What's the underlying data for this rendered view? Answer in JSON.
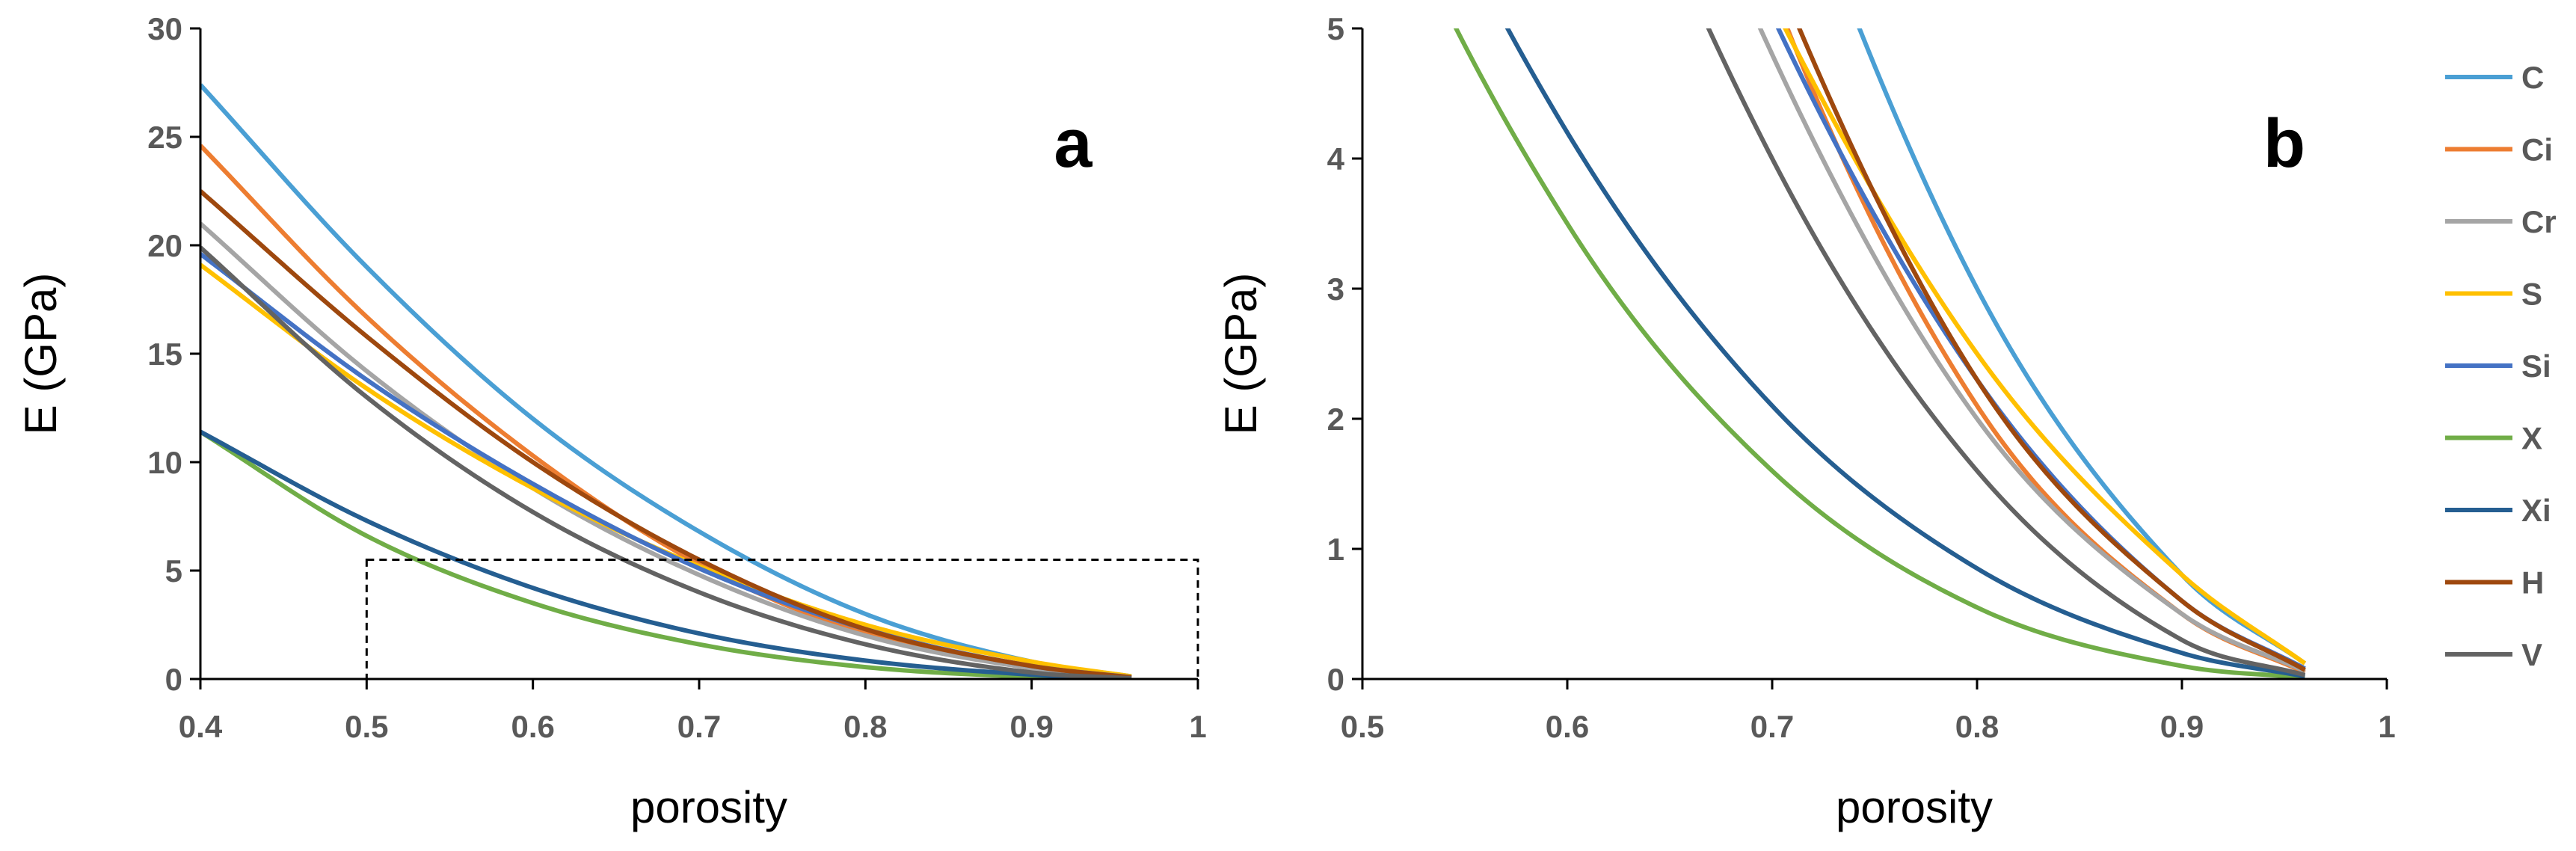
{
  "chart_data": [
    {
      "type": "line",
      "panel": "a",
      "xlabel": "porosity",
      "ylabel": "E (GPa)",
      "xlim": [
        0.4,
        1
      ],
      "ylim": [
        0,
        30
      ],
      "xticks": [
        0.4,
        0.5,
        0.6,
        0.7,
        0.8,
        0.9,
        1
      ],
      "yticks": [
        0,
        5,
        10,
        15,
        20,
        25,
        30
      ],
      "xtick_labels": [
        "0.4",
        "0.5",
        "0.6",
        "0.7",
        "0.8",
        "0.9",
        "1"
      ],
      "ytick_labels": [
        "0",
        "5",
        "10",
        "15",
        "20",
        "25",
        "30"
      ],
      "grid": false,
      "zoom_box": {
        "x": [
          0.5,
          1
        ],
        "y": [
          0,
          5.5
        ],
        "style": "dashed"
      }
    },
    {
      "type": "line",
      "panel": "b",
      "xlabel": "porosity",
      "ylabel": "E (GPa)",
      "xlim": [
        0.5,
        1
      ],
      "ylim": [
        0,
        5
      ],
      "xticks": [
        0.5,
        0.6,
        0.7,
        0.8,
        0.9,
        1
      ],
      "yticks": [
        0,
        1,
        2,
        3,
        4,
        5
      ],
      "xtick_labels": [
        "0.5",
        "0.6",
        "0.7",
        "0.8",
        "0.9",
        "1"
      ],
      "ytick_labels": [
        "0",
        "1",
        "2",
        "3",
        "4",
        "5"
      ],
      "grid": false
    }
  ],
  "series": [
    {
      "name": "C",
      "color": "#4a9fd4",
      "x": [
        0.4,
        0.5,
        0.6,
        0.7,
        0.8,
        0.9,
        0.96
      ],
      "y": [
        27.4,
        19.0,
        12.0,
        6.8,
        3.0,
        0.8,
        0.12
      ]
    },
    {
      "name": "Ci",
      "color": "#ed7d31",
      "x": [
        0.4,
        0.5,
        0.6,
        0.7,
        0.8,
        0.9,
        0.96
      ],
      "y": [
        24.6,
        16.7,
        10.3,
        5.3,
        2.1,
        0.5,
        0.05
      ]
    },
    {
      "name": "Cr",
      "color": "#a5a5a5",
      "x": [
        0.4,
        0.5,
        0.6,
        0.7,
        0.8,
        0.9,
        0.96
      ],
      "y": [
        21.0,
        14.2,
        8.8,
        4.8,
        2.0,
        0.5,
        0.06
      ]
    },
    {
      "name": "S",
      "color": "#ffc000",
      "x": [
        0.4,
        0.5,
        0.6,
        0.7,
        0.8,
        0.9,
        0.96
      ],
      "y": [
        19.1,
        13.4,
        8.8,
        5.2,
        2.5,
        0.8,
        0.12
      ]
    },
    {
      "name": "Si",
      "color": "#4472c4",
      "x": [
        0.4,
        0.5,
        0.6,
        0.7,
        0.8,
        0.9,
        0.96
      ],
      "y": [
        19.6,
        13.8,
        9.0,
        5.1,
        2.3,
        0.6,
        0.08
      ]
    },
    {
      "name": "X",
      "color": "#70ad47",
      "x": [
        0.4,
        0.5,
        0.6,
        0.7,
        0.8,
        0.9,
        0.96
      ],
      "y": [
        11.4,
        6.6,
        3.5,
        1.6,
        0.55,
        0.1,
        0.01
      ]
    },
    {
      "name": "Xi",
      "color": "#255e91",
      "x": [
        0.4,
        0.5,
        0.6,
        0.7,
        0.8,
        0.9,
        0.96
      ],
      "y": [
        11.4,
        7.3,
        4.2,
        2.1,
        0.85,
        0.2,
        0.02
      ]
    },
    {
      "name": "H",
      "color": "#9e480e",
      "x": [
        0.4,
        0.5,
        0.6,
        0.7,
        0.8,
        0.9,
        0.96
      ],
      "y": [
        22.5,
        15.8,
        10.0,
        5.5,
        2.3,
        0.6,
        0.07
      ]
    },
    {
      "name": "V",
      "color": "#636363",
      "x": [
        0.4,
        0.5,
        0.6,
        0.7,
        0.8,
        0.9,
        0.96
      ],
      "y": [
        19.9,
        13.0,
        7.7,
        4.0,
        1.6,
        0.3,
        0.03
      ]
    }
  ],
  "panels": {
    "a": "a",
    "b": "b"
  }
}
